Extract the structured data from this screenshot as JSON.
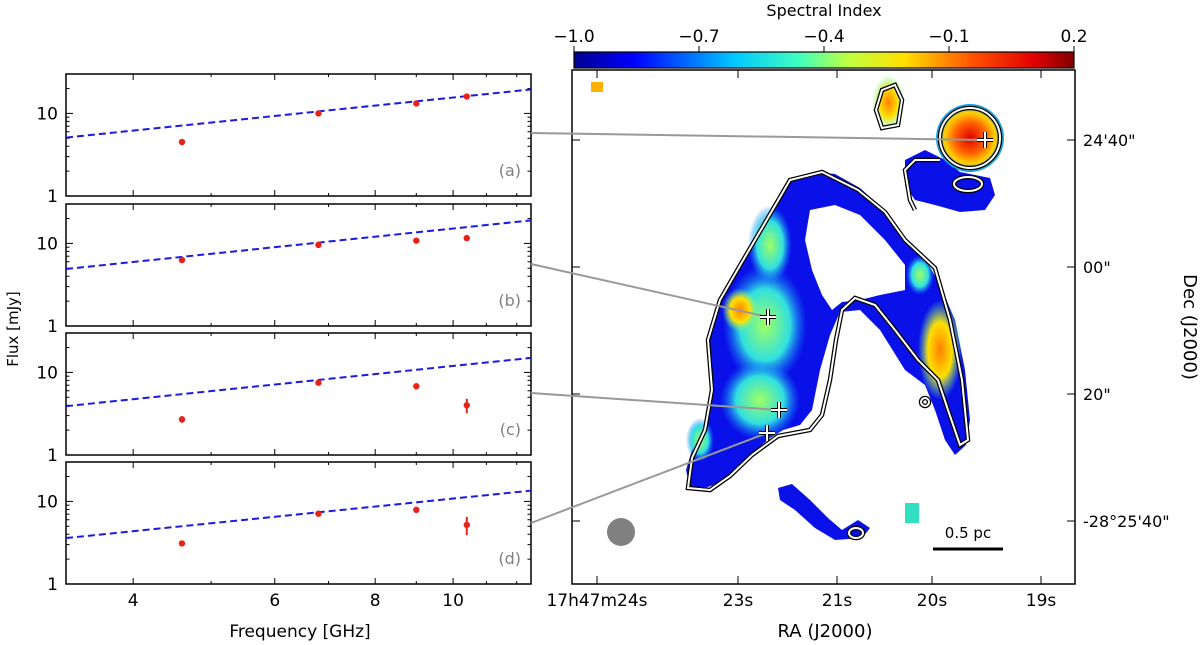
{
  "chart_data": [
    {
      "type": "scatter",
      "panel": "(a)",
      "xscale": "log",
      "yscale": "log",
      "xlim": [
        3.3,
        12.5
      ],
      "ylim": [
        1,
        30
      ],
      "points": [
        {
          "x": 4.6,
          "y": 4.5
        },
        {
          "x": 6.8,
          "y": 10.0
        },
        {
          "x": 9.0,
          "y": 13.2
        },
        {
          "x": 10.4,
          "y": 16.0
        }
      ],
      "fit": {
        "x": [
          3.3,
          12.5
        ],
        "y": [
          5.1,
          19.5
        ]
      }
    },
    {
      "type": "scatter",
      "panel": "(b)",
      "xscale": "log",
      "yscale": "log",
      "xlim": [
        3.3,
        12.5
      ],
      "ylim": [
        1,
        30
      ],
      "points": [
        {
          "x": 4.6,
          "y": 6.3
        },
        {
          "x": 6.8,
          "y": 9.6
        },
        {
          "x": 9.0,
          "y": 10.8
        },
        {
          "x": 10.4,
          "y": 11.6
        }
      ],
      "fit": {
        "x": [
          3.3,
          12.5
        ],
        "y": [
          4.9,
          19.0
        ]
      }
    },
    {
      "type": "scatter",
      "panel": "(c)",
      "xscale": "log",
      "yscale": "log",
      "xlim": [
        3.3,
        12.5
      ],
      "ylim": [
        1,
        30
      ],
      "points": [
        {
          "x": 4.6,
          "y": 2.7,
          "err": 0.25
        },
        {
          "x": 6.8,
          "y": 7.5
        },
        {
          "x": 9.0,
          "y": 6.8
        },
        {
          "x": 10.4,
          "y": 4.0,
          "err": 0.8
        }
      ],
      "fit": {
        "x": [
          3.3,
          12.5
        ],
        "y": [
          3.9,
          15.0
        ]
      }
    },
    {
      "type": "scatter",
      "panel": "(d)",
      "xscale": "log",
      "yscale": "log",
      "xlim": [
        3.3,
        12.5
      ],
      "ylim": [
        1,
        30
      ],
      "points": [
        {
          "x": 4.6,
          "y": 3.1,
          "err": 0.25
        },
        {
          "x": 6.8,
          "y": 7.1
        },
        {
          "x": 9.0,
          "y": 7.9
        },
        {
          "x": 10.4,
          "y": 5.2,
          "err": 1.3
        }
      ],
      "fit": {
        "x": [
          3.3,
          12.5
        ],
        "y": [
          3.6,
          13.5
        ]
      }
    },
    {
      "type": "heatmap",
      "title": "Spectral Index",
      "colorbar": {
        "range": [
          -1.0,
          0.2
        ],
        "ticks": [
          "−1.0",
          "−0.7",
          "−0.4",
          "−0.1",
          "0.2"
        ]
      },
      "xlabel": "RA (J2000)",
      "ylabel": "Dec (J2000)",
      "ra_ticks": [
        "17h47m24s",
        "23s",
        "21s",
        "20s",
        "19s"
      ],
      "dec_ticks": [
        "24'40\"",
        "00\"",
        "20\"",
        "-28°25'40\""
      ],
      "scale_bar": "0.5 pc"
    }
  ],
  "axes": {
    "xlabel": "Frequency [GHz]",
    "ylabel": "Flux [mJy]",
    "xticks": [
      "4",
      "6",
      "8",
      "10"
    ],
    "yticks": [
      "1",
      "10"
    ]
  },
  "colors": {
    "points": "#e8221b",
    "fit": "#1a1ae6",
    "label": "#808080",
    "line": "#999999"
  }
}
